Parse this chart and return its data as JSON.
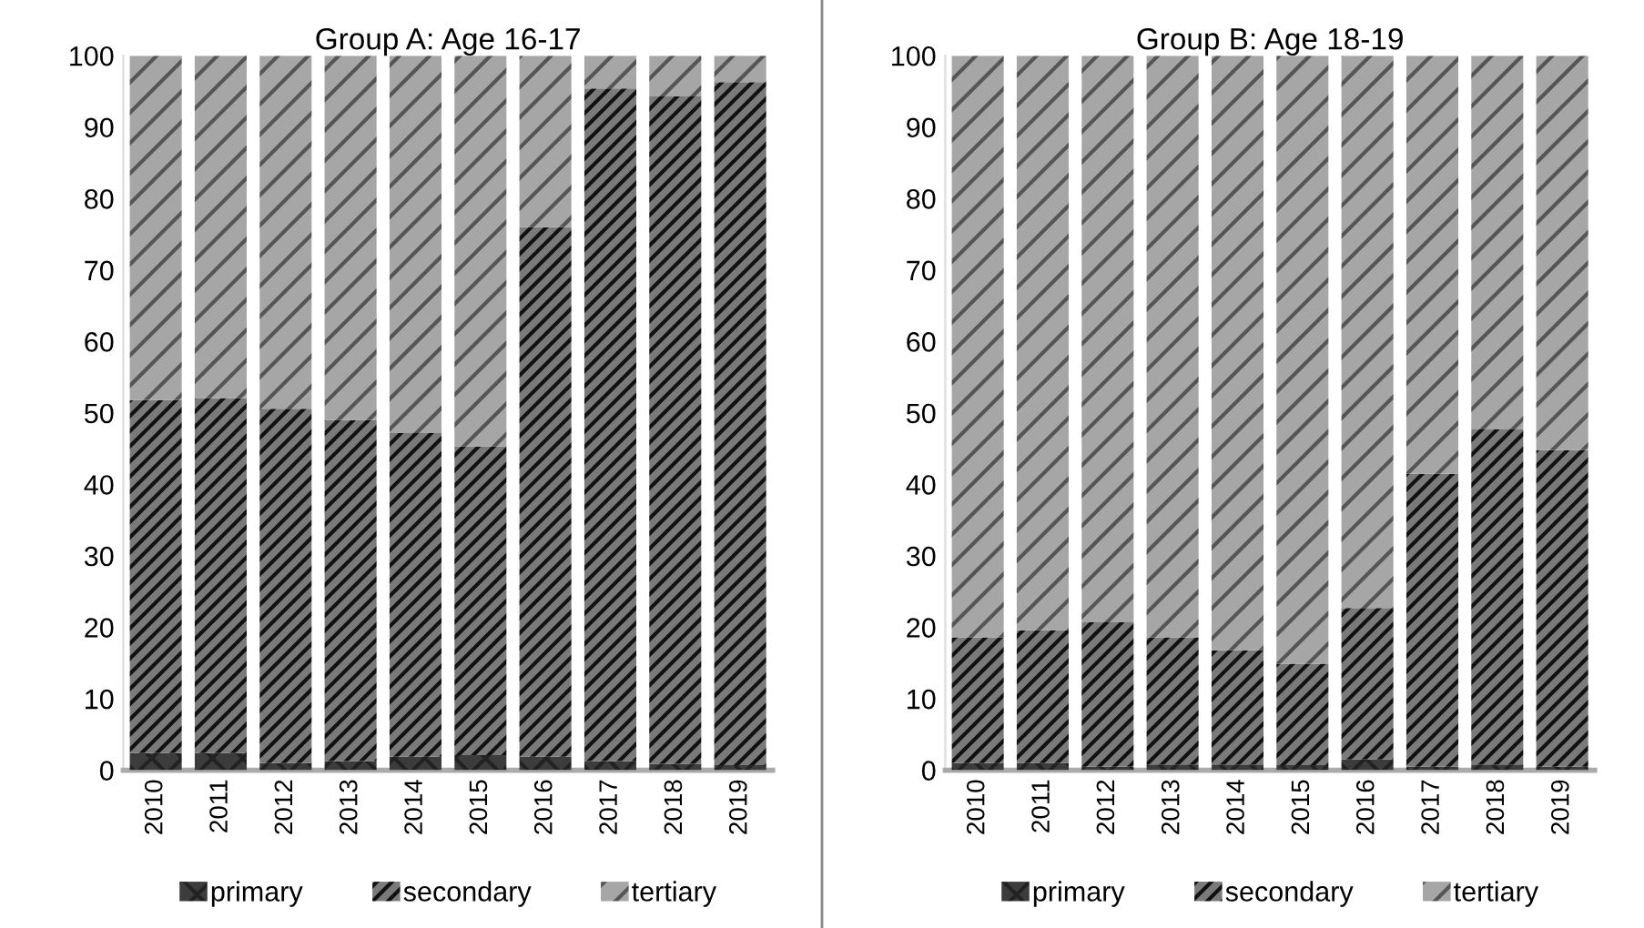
{
  "chart_data": [
    {
      "type": "bar",
      "title": "Group A: Age 16-17",
      "stacked": true,
      "categories": [
        "2010",
        "2011",
        "2012",
        "2013",
        "2014",
        "2015",
        "2016",
        "2017",
        "2018",
        "2019"
      ],
      "ylim": [
        0,
        100
      ],
      "yticks": [
        0,
        10,
        20,
        30,
        40,
        50,
        60,
        70,
        80,
        90,
        100
      ],
      "grid": false,
      "legend": "bottom",
      "series": [
        {
          "name": "primary",
          "color": "#3c3c3c",
          "values": [
            2.4,
            2.4,
            1,
            1.3,
            1.9,
            2.1,
            1.9,
            1.3,
            0.9,
            0.7
          ]
        },
        {
          "name": "secondary",
          "color": "#7a7a7a",
          "values": [
            49.4,
            49.7,
            49.6,
            47.7,
            45.3,
            43.2,
            74.1,
            94.1,
            93.4,
            95.6
          ]
        },
        {
          "name": "tertiary",
          "color": "#a6a6a6",
          "values": [
            48.2,
            47.9,
            49.4,
            51,
            52.8,
            54.7,
            24,
            4.6,
            5.7,
            3.7
          ]
        }
      ]
    },
    {
      "type": "bar",
      "title": "Group B: Age 18-19",
      "stacked": true,
      "categories": [
        "2010",
        "2011",
        "2012",
        "2013",
        "2014",
        "2015",
        "2016",
        "2017",
        "2018",
        "2019"
      ],
      "ylim": [
        0,
        100
      ],
      "yticks": [
        0,
        10,
        20,
        30,
        40,
        50,
        60,
        70,
        80,
        90,
        100
      ],
      "grid": false,
      "legend": "bottom",
      "series": [
        {
          "name": "primary",
          "color": "#3c3c3c",
          "values": [
            1,
            1,
            0.5,
            0.8,
            0.8,
            0.7,
            1.5,
            0.5,
            0.8,
            0.5
          ]
        },
        {
          "name": "secondary",
          "color": "#7a7a7a",
          "values": [
            17.6,
            18.6,
            20.2,
            17.8,
            16,
            14.2,
            21.2,
            41,
            46.9,
            44.3
          ]
        },
        {
          "name": "tertiary",
          "color": "#a6a6a6",
          "values": [
            81.4,
            80.4,
            79.3,
            81.4,
            83.2,
            85.1,
            77.3,
            58.5,
            52.3,
            55.2
          ]
        }
      ]
    }
  ]
}
